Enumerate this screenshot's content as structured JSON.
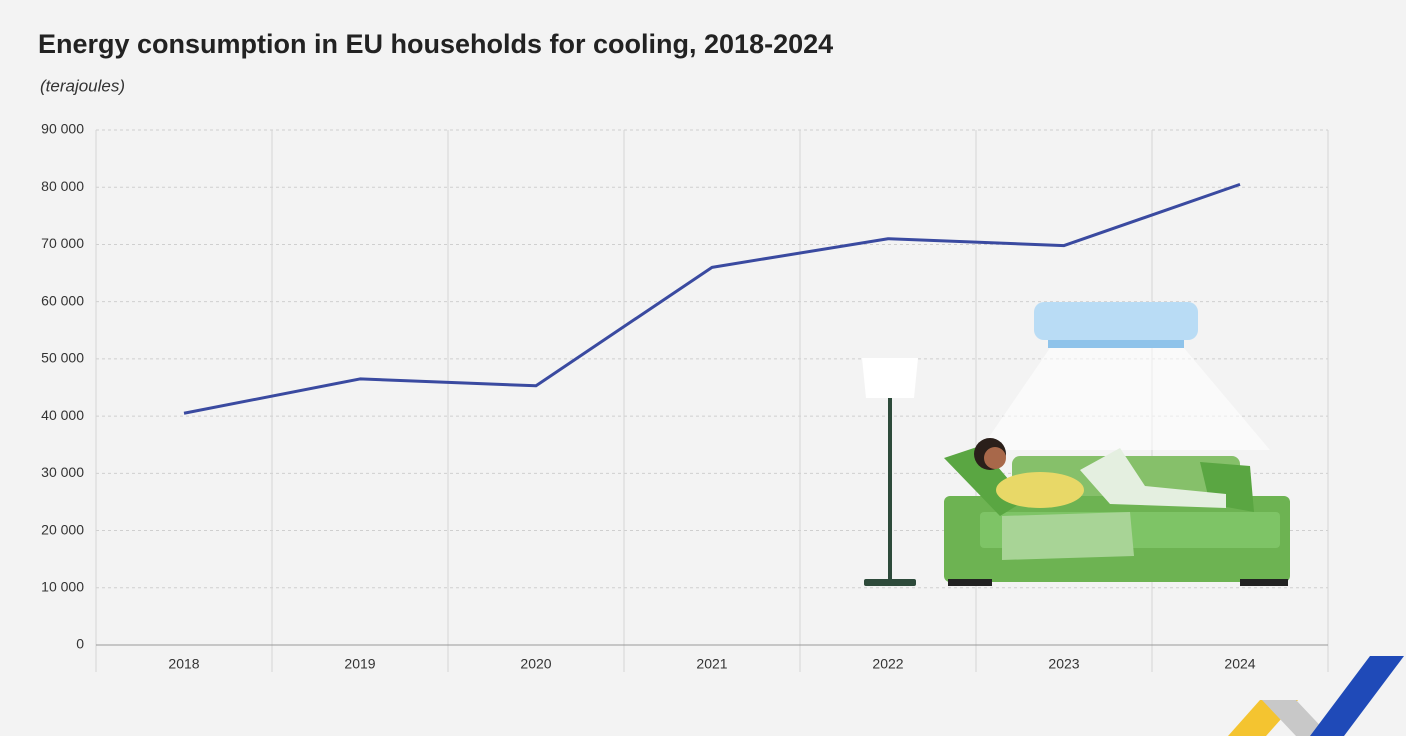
{
  "chart_data": {
    "type": "line",
    "title": "Energy consumption in EU households for cooling, 2018-2024",
    "subtitle": "(terajoules)",
    "categories": [
      "2018",
      "2019",
      "2020",
      "2021",
      "2022",
      "2023",
      "2024"
    ],
    "values": [
      40500,
      46500,
      45300,
      66000,
      71000,
      69800,
      80500
    ],
    "color": "#3a4aa0",
    "ylim": [
      0,
      90000
    ],
    "yticks": [
      0,
      {
        "value": 10000,
        "label": "10 000"
      },
      {
        "value": 20000,
        "label": "20 000"
      },
      {
        "value": 30000,
        "label": "30 000"
      },
      {
        "value": 40000,
        "label": "40 000"
      },
      {
        "value": 50000,
        "label": "50 000"
      },
      {
        "value": 60000,
        "label": "60 000"
      },
      {
        "value": 70000,
        "label": "70 000"
      },
      {
        "value": 80000,
        "label": "80 000"
      },
      {
        "value": 90000,
        "label": "90 000"
      }
    ],
    "grid": true
  }
}
